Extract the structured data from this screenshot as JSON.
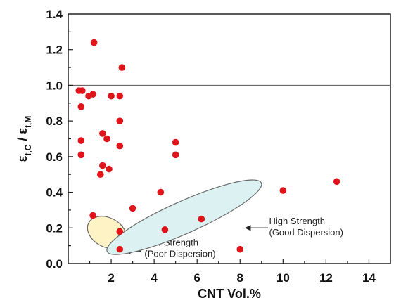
{
  "chart_data": {
    "type": "scatter",
    "title": "",
    "xlabel": "CNT Vol.%",
    "ylabel": {
      "base": "ε",
      "sub_num": "f,C",
      "sep": " / ",
      "sub_den": "f,M"
    },
    "xlim": [
      0,
      15
    ],
    "ylim": [
      0,
      1.4
    ],
    "xticks": [
      2,
      4,
      6,
      8,
      10,
      12,
      14
    ],
    "yticks": [
      0.0,
      0.2,
      0.4,
      0.6,
      0.8,
      1.0,
      1.2,
      1.4
    ],
    "ytick_labels": [
      "0.0",
      "0.2",
      "0.4",
      "0.6",
      "0.8",
      "1.0",
      "1.2",
      "1.4"
    ],
    "grid": false,
    "reference_line_y": 1.0,
    "point_color": "#e0141a",
    "series": [
      {
        "points": [
          {
            "x": 0.5,
            "y": 0.97
          },
          {
            "x": 0.65,
            "y": 0.97
          },
          {
            "x": 0.6,
            "y": 0.88
          },
          {
            "x": 0.6,
            "y": 0.69
          },
          {
            "x": 0.6,
            "y": 0.61
          },
          {
            "x": 0.95,
            "y": 0.94
          },
          {
            "x": 1.15,
            "y": 0.95
          },
          {
            "x": 1.2,
            "y": 1.24
          },
          {
            "x": 1.5,
            "y": 0.5
          },
          {
            "x": 1.6,
            "y": 0.55
          },
          {
            "x": 1.6,
            "y": 0.73
          },
          {
            "x": 1.8,
            "y": 0.7
          },
          {
            "x": 1.9,
            "y": 0.53
          },
          {
            "x": 2.0,
            "y": 0.94
          },
          {
            "x": 2.4,
            "y": 0.94
          },
          {
            "x": 2.4,
            "y": 0.8
          },
          {
            "x": 2.4,
            "y": 0.66
          },
          {
            "x": 2.5,
            "y": 1.1
          },
          {
            "x": 5.0,
            "y": 0.68
          },
          {
            "x": 5.0,
            "y": 0.61
          },
          {
            "x": 10.0,
            "y": 0.41
          },
          {
            "x": 12.5,
            "y": 0.46
          }
        ]
      },
      {
        "points": [
          {
            "x": 1.15,
            "y": 0.27
          },
          {
            "x": 2.4,
            "y": 0.18
          },
          {
            "x": 2.4,
            "y": 0.08
          }
        ]
      },
      {
        "points": [
          {
            "x": 3.0,
            "y": 0.31
          },
          {
            "x": 4.3,
            "y": 0.4
          },
          {
            "x": 4.5,
            "y": 0.19
          },
          {
            "x": 6.2,
            "y": 0.25
          },
          {
            "x": 8.0,
            "y": 0.08
          }
        ]
      }
    ],
    "regions": [
      {
        "name": "low-strength",
        "cx": 1.8,
        "cy": 0.175,
        "rx": 1.45,
        "ry": 0.115,
        "angle_deg": -62,
        "fill": "#fdf3c4",
        "stroke": "#6a6a6a",
        "label": [
          "Low Strength",
          "(Poor Dispersion)"
        ],
        "arrow_from": {
          "x": 3.4,
          "y": 0.07
        },
        "arrow_to": {
          "x": 2.65,
          "y": 0.07
        },
        "label_at": {
          "x": 3.55,
          "y": 0.1
        }
      },
      {
        "name": "high-strength",
        "cx": 5.4,
        "cy": 0.26,
        "rx": 4.3,
        "ry": 0.09,
        "angle_deg": -24,
        "fill": "#dcf1f2",
        "stroke": "#6a6a6a",
        "label": [
          "High Strength",
          "(Good Dispersion)"
        ],
        "arrow_from": {
          "x": 9.3,
          "y": 0.2
        },
        "arrow_to": {
          "x": 8.25,
          "y": 0.2
        },
        "label_at": {
          "x": 9.35,
          "y": 0.22
        }
      }
    ]
  }
}
